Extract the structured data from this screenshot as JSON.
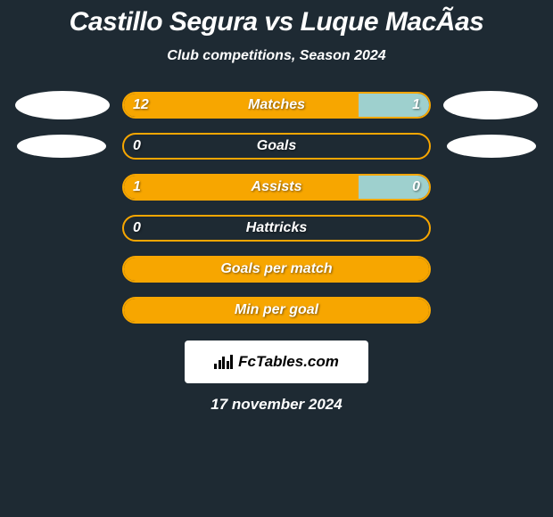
{
  "background_color": "#1e2a33",
  "text_color": "#ffffff",
  "title": "Castillo Segura vs Luque MacÃ­as",
  "subtitle": "Club competitions, Season 2024",
  "player_left_color": "#f7a600",
  "player_right_color": "#9ed0ce",
  "border_color": "#f7a600",
  "avatar_color": "#ffffff",
  "stats": [
    {
      "label": "Matches",
      "left_val": "12",
      "right_val": "1",
      "left_pct": 77,
      "right_pct": 23,
      "show_values": true
    },
    {
      "label": "Goals",
      "left_val": "0",
      "right_val": "0",
      "left_pct": 0,
      "right_pct": 0,
      "show_values": true,
      "hide_right": true
    },
    {
      "label": "Assists",
      "left_val": "1",
      "right_val": "0",
      "left_pct": 77,
      "right_pct": 23,
      "show_values": true
    },
    {
      "label": "Hattricks",
      "left_val": "0",
      "right_val": "0",
      "left_pct": 0,
      "right_pct": 0,
      "show_values": true,
      "hide_right": true
    },
    {
      "label": "Goals per match",
      "left_val": "",
      "right_val": "",
      "left_pct": 100,
      "right_pct": 0,
      "show_values": false,
      "full_orange": true
    },
    {
      "label": "Min per goal",
      "left_val": "",
      "right_val": "",
      "left_pct": 100,
      "right_pct": 0,
      "show_values": false,
      "full_orange": true
    }
  ],
  "footer": {
    "site_name": "FcTables.com",
    "date": "17 november 2024",
    "logo_bg": "#ffffff",
    "logo_text_color": "#000000"
  },
  "typography": {
    "title_fontsize": 30,
    "subtitle_fontsize": 16,
    "label_fontsize": 16,
    "value_fontsize": 16,
    "date_fontsize": 17,
    "font_style": "italic",
    "font_weight": 800
  }
}
